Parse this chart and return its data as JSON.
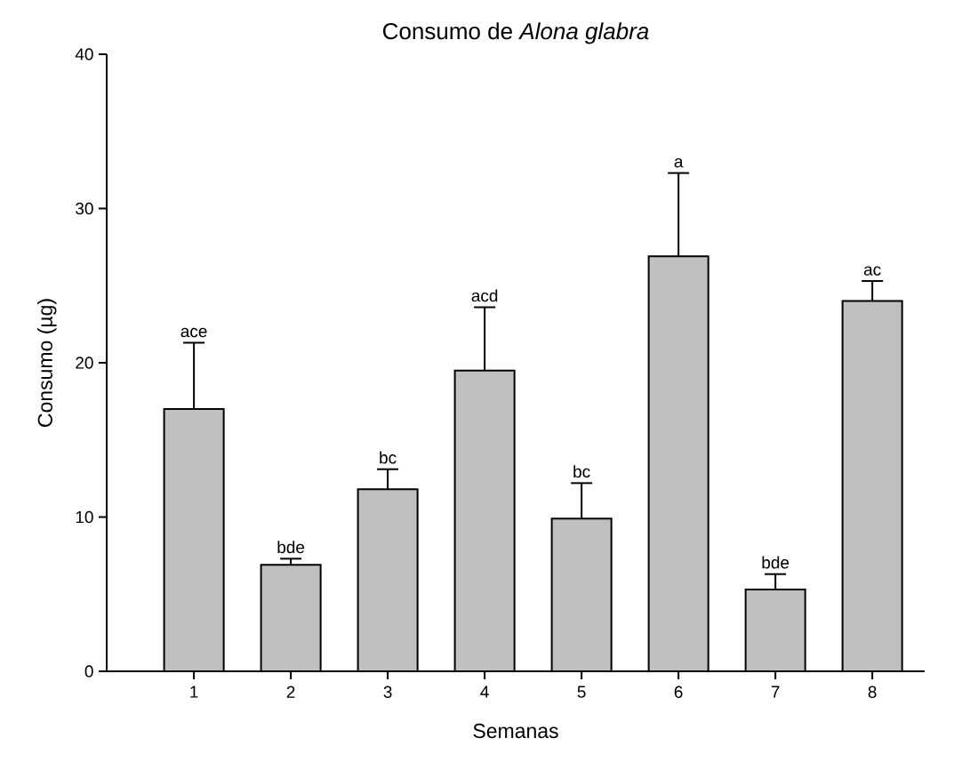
{
  "chart_data": {
    "type": "bar",
    "title": "Consumo de *Alona glabra*",
    "xlabel": "Semanas",
    "ylabel": "Consumo (µg)",
    "categories": [
      "1",
      "2",
      "3",
      "4",
      "5",
      "6",
      "7",
      "8"
    ],
    "values": [
      17.0,
      6.9,
      11.8,
      19.5,
      9.9,
      26.9,
      5.3,
      24.0
    ],
    "errors": [
      4.3,
      0.4,
      1.3,
      4.1,
      2.3,
      5.4,
      1.0,
      1.3
    ],
    "color": "#c0c0c0",
    "ylim": [
      0,
      40
    ],
    "yticks": [
      0,
      10,
      20,
      30,
      40
    ],
    "annotations": [
      {
        "text": "ace",
        "x": "1",
        "y": 21.3
      },
      {
        "text": "bde",
        "x": "2",
        "y": 7.3
      },
      {
        "text": "bc",
        "x": "3",
        "y": 13.1
      },
      {
        "text": "acd",
        "x": "4",
        "y": 23.6
      },
      {
        "text": "bc",
        "x": "5",
        "y": 12.2
      },
      {
        "text": "a",
        "x": "6",
        "y": 32.3
      },
      {
        "text": "bde",
        "x": "7",
        "y": 6.3
      },
      {
        "text": "ac",
        "x": "8",
        "y": 25.3
      }
    ]
  }
}
